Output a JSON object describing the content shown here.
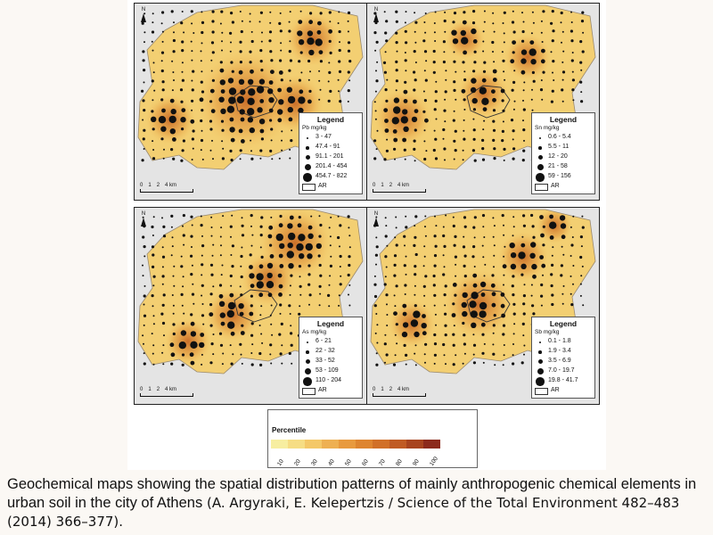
{
  "maps": [
    {
      "id": "pb",
      "legend_title": "Legend",
      "unit": "Pb mg/kg",
      "classes": [
        "3 - 47",
        "47.4 - 91",
        "91.1 - 201",
        "201.4 - 454",
        "454.7 - 822"
      ],
      "ar_label": "AR"
    },
    {
      "id": "sn",
      "legend_title": "Legend",
      "unit": "Sn mg/kg",
      "classes": [
        "0.6 - 5.4",
        "5.5 - 11",
        "12 - 20",
        "21 - 58",
        "59 - 156"
      ],
      "ar_label": "AR"
    },
    {
      "id": "as",
      "legend_title": "Legend",
      "unit": "As mg/kg",
      "classes": [
        "6 - 21",
        "22 - 32",
        "33 - 52",
        "53 - 109",
        "110 - 204"
      ],
      "ar_label": "AR"
    },
    {
      "id": "sb",
      "legend_title": "Legend",
      "unit": "Sb mg/kg",
      "classes": [
        "0.1 - 1.8",
        "1.9 - 3.4",
        "3.5 - 6.9",
        "7.0 - 19.7",
        "19.8 - 41.7"
      ],
      "ar_label": "AR"
    }
  ],
  "scalebar": {
    "ticks": [
      "0",
      "1",
      "2",
      "4 km"
    ]
  },
  "north_label": "N",
  "percentile": {
    "title": "Percentile",
    "labels": [
      "10",
      "20",
      "30",
      "40",
      "50",
      "60",
      "70",
      "80",
      "90",
      "100"
    ],
    "colors": [
      "#f7eea0",
      "#f6dd84",
      "#f4c868",
      "#eeb052",
      "#e89a3e",
      "#de8530",
      "#d17028",
      "#c05b24",
      "#a8441f",
      "#8c2a1c"
    ]
  },
  "caption": {
    "text": "Geochemical maps showing the spatial distribution patterns of mainly anthropogenic chemical elements in urban soil in the city of Athens",
    "citation": " (A. Argyraki, E. Kelepertzis / Science of the Total Environment 482–483 (2014) 366–377)."
  }
}
